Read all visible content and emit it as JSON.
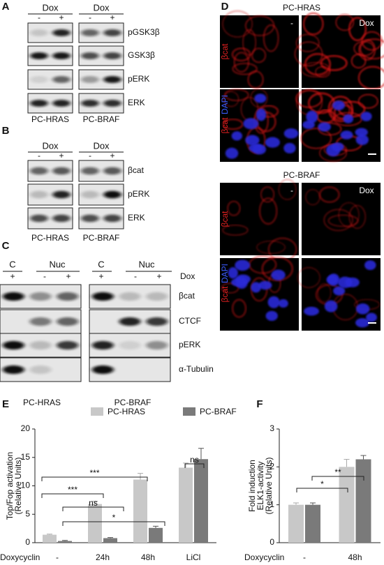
{
  "panels": {
    "letters": [
      "A",
      "B",
      "C",
      "D",
      "E",
      "F"
    ]
  },
  "blot_a": {
    "dox": [
      "Dox",
      "Dox"
    ],
    "signs": [
      "-",
      "+",
      "-",
      "+"
    ],
    "rows": [
      "pGSK3β",
      "GSK3β",
      "pERK",
      "ERK"
    ],
    "cells": [
      "PC-HRAS",
      "PC-BRAF"
    ]
  },
  "blot_b": {
    "dox": [
      "Dox",
      "Dox"
    ],
    "signs": [
      "-",
      "+",
      "-",
      "+"
    ],
    "rows": [
      "βcat",
      "pERK",
      "ERK"
    ],
    "cells": [
      "PC-HRAS",
      "PC-BRAF"
    ]
  },
  "blot_c": {
    "fractions": [
      "C",
      "Nuc",
      "C",
      "Nuc"
    ],
    "dox": "Dox",
    "signs": [
      "+",
      "-",
      "+",
      "+",
      "-",
      "+"
    ],
    "rows": [
      "βcat",
      "CTCF",
      "pERK",
      "α-Tubulin"
    ],
    "cells": [
      "PC-HRAS",
      "PC-BRAF"
    ]
  },
  "microscopy": {
    "cells": [
      "PC-HRAS",
      "PC-BRAF"
    ],
    "conditions": [
      "-",
      "Dox"
    ],
    "stains": [
      "βcat",
      "DAPI"
    ]
  },
  "chart_data": [
    {
      "type": "bar",
      "ylabel": [
        "Top/Fop activation",
        "(Relative Units)"
      ],
      "xlabel": "Doxycyclin",
      "categories": [
        "-",
        "24h",
        "48h",
        "LiCl"
      ],
      "series": [
        {
          "name": "PC-HRAS",
          "color": "#c8c8c8",
          "values": [
            1.4,
            6.8,
            11.1,
            13.2
          ],
          "errors": [
            0.1,
            0.5,
            1.1,
            0.8
          ]
        },
        {
          "name": "PC-BRAF",
          "color": "#7a7a7a",
          "values": [
            0.3,
            0.8,
            2.6,
            14.7
          ],
          "errors": [
            0.1,
            0.1,
            0.3,
            1.9
          ]
        }
      ],
      "ylim": [
        0,
        20
      ],
      "yticks": [
        0,
        5,
        10,
        15,
        20
      ],
      "annotations": [
        "***",
        "***",
        "ns",
        "*",
        "ns"
      ]
    },
    {
      "type": "bar",
      "ylabel": [
        "Fold induction",
        "ELK1-activity",
        "(Relative Units)"
      ],
      "xlabel": "Doxycyclin",
      "categories": [
        "-",
        "48h"
      ],
      "series": [
        {
          "color": "#c8c8c8",
          "values": [
            1.0,
            2.0
          ],
          "errors": [
            0.05,
            0.2
          ]
        },
        {
          "color": "#7a7a7a",
          "values": [
            1.0,
            2.2
          ],
          "errors": [
            0.05,
            0.1
          ]
        }
      ],
      "ylim": [
        0,
        3
      ],
      "yticks": [
        0,
        1,
        2,
        3
      ],
      "annotations": [
        "*",
        "**"
      ]
    }
  ]
}
